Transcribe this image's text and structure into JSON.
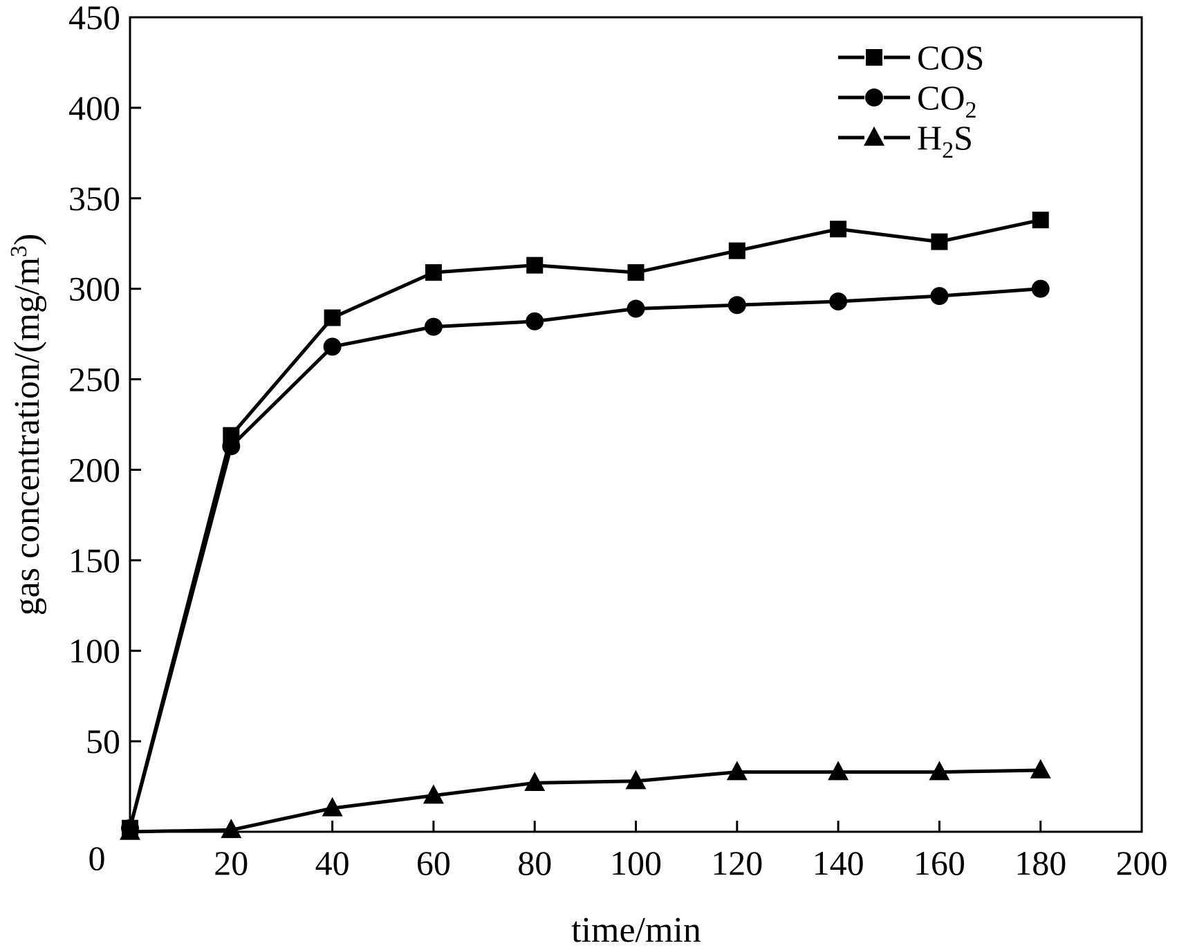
{
  "chart_data": {
    "type": "line",
    "title": "",
    "xlabel": "time/min",
    "ylabel": {
      "main": "gas concentration/(mg/m",
      "sup": "3",
      "end": ")"
    },
    "xlim": [
      0,
      200
    ],
    "ylim": [
      0,
      450
    ],
    "x_ticks": [
      20,
      40,
      60,
      80,
      100,
      120,
      140,
      160,
      180,
      200
    ],
    "y_ticks": [
      50,
      100,
      150,
      200,
      250,
      300,
      350,
      400,
      450
    ],
    "origin_label": "0",
    "x": [
      0,
      20,
      40,
      60,
      80,
      100,
      120,
      140,
      160,
      180
    ],
    "series": [
      {
        "name": "COS",
        "label_main": "COS",
        "label_sub": "",
        "label_end": "",
        "marker": "square",
        "values": [
          2,
          219,
          284,
          309,
          313,
          309,
          321,
          333,
          326,
          338
        ]
      },
      {
        "name": "CO2",
        "label_main": "CO",
        "label_sub": "2",
        "label_end": "",
        "marker": "circle",
        "values": [
          2,
          213,
          268,
          279,
          282,
          289,
          291,
          293,
          296,
          300
        ]
      },
      {
        "name": "H2S",
        "label_main": "H",
        "label_sub": "2",
        "label_end": "S",
        "marker": "triangle",
        "values": [
          0,
          1,
          13,
          20,
          27,
          28,
          33,
          33,
          33,
          34
        ]
      }
    ],
    "legend_position": "top-right",
    "grid": false,
    "colors": {
      "line": "#000000",
      "background": "#ffffff"
    }
  }
}
